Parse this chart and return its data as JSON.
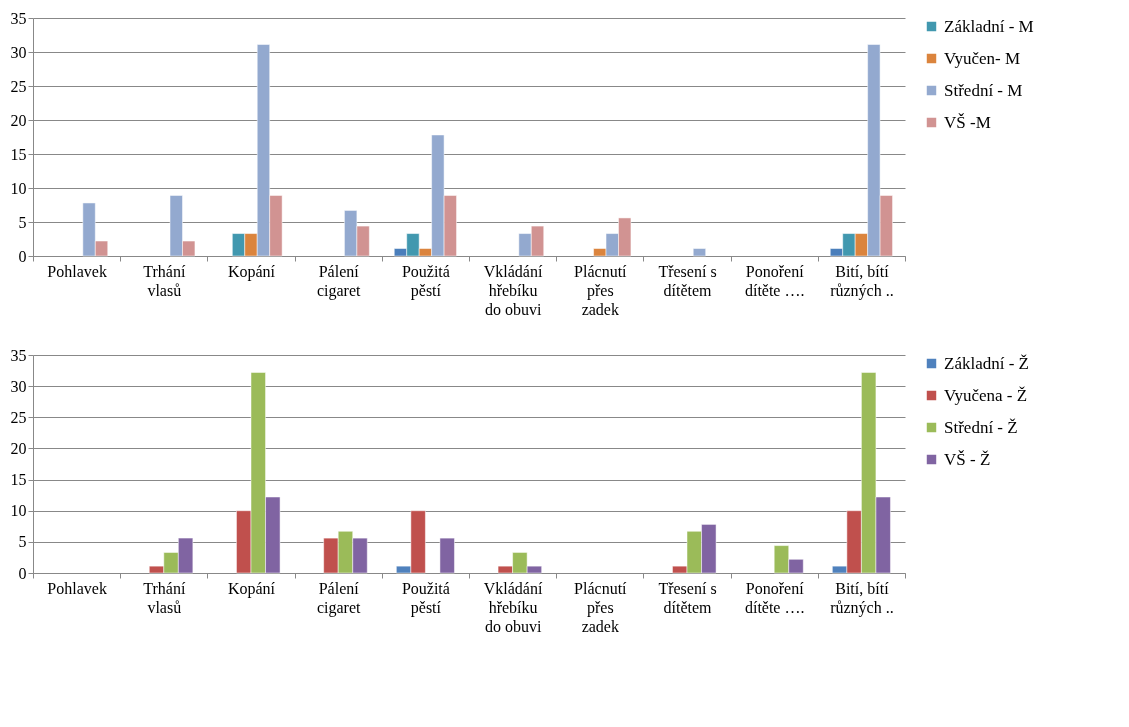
{
  "chart_data": [
    {
      "type": "bar",
      "categories": [
        "Pohlavek",
        "Trhání\nvlasů",
        "Kopání",
        "Pálení\ncigaret",
        "Použitá\npěstí",
        "Vkládání\nhřebíku\ndo obuvi",
        "Plácnutí\npřes\nzadek",
        "Třesení s\ndítětem",
        "Ponoření\ndítěte ….",
        "Bití, bítí\nrůzných .."
      ],
      "series": [
        {
          "color": "#4a7ebb",
          "values": [
            null,
            null,
            null,
            null,
            1.1,
            null,
            null,
            null,
            null,
            1.1
          ]
        },
        {
          "name": "Základní - M",
          "color": "#4198af",
          "values": [
            null,
            null,
            3.3,
            null,
            3.3,
            null,
            null,
            null,
            null,
            3.3
          ]
        },
        {
          "name": "Vyučen- M",
          "color": "#db843d",
          "values": [
            null,
            null,
            3.3,
            null,
            1.1,
            null,
            1.1,
            null,
            null,
            3.3
          ]
        },
        {
          "name": "Střední - M",
          "color": "#93a9cf",
          "values": [
            7.8,
            8.9,
            31.1,
            6.7,
            17.8,
            3.3,
            3.3,
            1.1,
            null,
            31.1
          ]
        },
        {
          "name": "VŠ -M",
          "color": "#d19392",
          "values": [
            2.2,
            2.2,
            8.9,
            4.4,
            8.9,
            4.4,
            5.6,
            null,
            null,
            8.9
          ]
        }
      ],
      "ylim": [
        0,
        35
      ],
      "yticks": [
        0,
        5,
        10,
        15,
        20,
        25,
        30,
        35
      ],
      "grid": "y",
      "legend": "right"
    },
    {
      "type": "bar",
      "categories": [
        "Pohlavek",
        "Trhání\nvlasů",
        "Kopání",
        "Pálení\ncigaret",
        "Použitá\npěstí",
        "Vkládání\nhřebíku\ndo obuvi",
        "Plácnutí\npřes\nzadek",
        "Třesení s\ndítětem",
        "Ponoření\ndítěte ….",
        "Bití, bítí\nrůzných .."
      ],
      "series": [
        {
          "name": "Základní - Ž",
          "color": "#4f81bd",
          "values": [
            null,
            null,
            null,
            null,
            1.1,
            null,
            null,
            null,
            null,
            1.1
          ]
        },
        {
          "name": "Vyučena - Ž",
          "color": "#c0504d",
          "values": [
            null,
            1.1,
            10,
            5.6,
            10,
            1.1,
            null,
            1.1,
            null,
            10
          ]
        },
        {
          "name": "Střední - Ž",
          "color": "#9bbb59",
          "values": [
            null,
            3.3,
            32.2,
            6.7,
            null,
            3.3,
            null,
            6.7,
            4.4,
            32.2
          ]
        },
        {
          "name": "VŠ - Ž",
          "color": "#8064a2",
          "values": [
            null,
            5.6,
            12.2,
            5.6,
            5.6,
            1.1,
            null,
            7.8,
            2.2,
            12.2
          ]
        }
      ],
      "ylim": [
        0,
        35
      ],
      "yticks": [
        0,
        5,
        10,
        15,
        20,
        25,
        30,
        35
      ],
      "grid": "y",
      "legend": "right"
    }
  ]
}
